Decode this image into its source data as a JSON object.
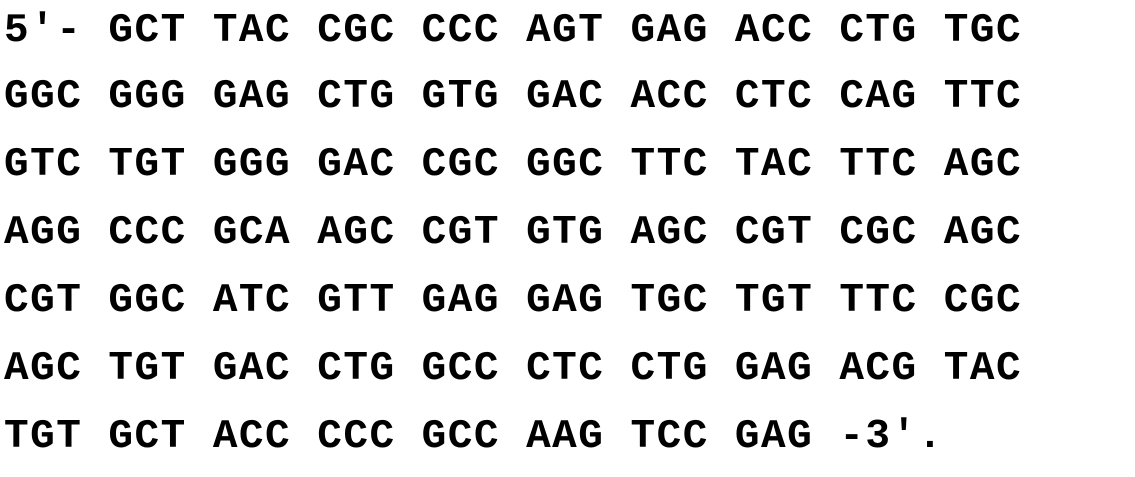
{
  "sequence": {
    "lines": [
      "5′- GCT TAC CGC CCC AGT GAG ACC CTG TGC",
      "GGC GGG GAG CTG GTG GAC ACC CTC CAG TTC",
      "GTC TGT GGG GAC CGC GGC TTC TAC TTC AGC",
      "AGG CCC GCA AGC CGT GTG AGC CGT CGC AGC",
      "CGT GGC ATC GTT GAG GAG TGC TGT TTC CGC",
      "AGC TGT GAC CTG GCC CTC CTG GAG ACG TAC",
      "TGT GCT ACC CCC GCC AAG TCC GAG -3′."
    ]
  }
}
